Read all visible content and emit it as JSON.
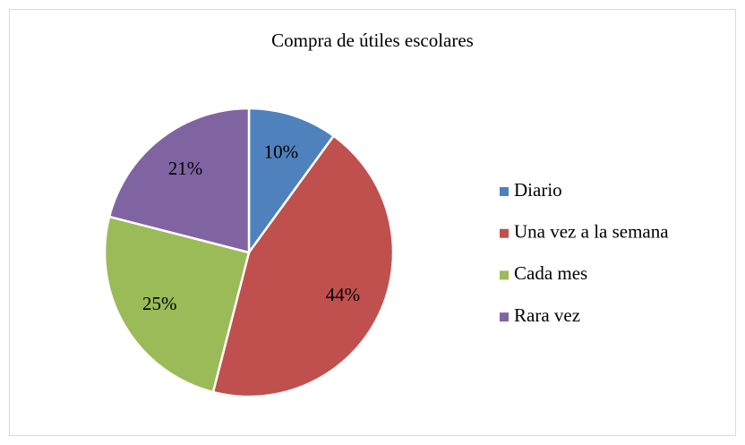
{
  "chart_data": {
    "type": "pie",
    "title": "Compra de útiles escolares",
    "categories": [
      "Diario",
      "Una vez a la semana",
      "Cada mes",
      "Rara vez"
    ],
    "values": [
      10,
      44,
      25,
      21
    ],
    "value_labels": [
      "10%",
      "44%",
      "25%",
      "21%"
    ],
    "colors": [
      "#4f81bd",
      "#c0504d",
      "#9bbb59",
      "#8064a2"
    ],
    "legend": "right"
  }
}
